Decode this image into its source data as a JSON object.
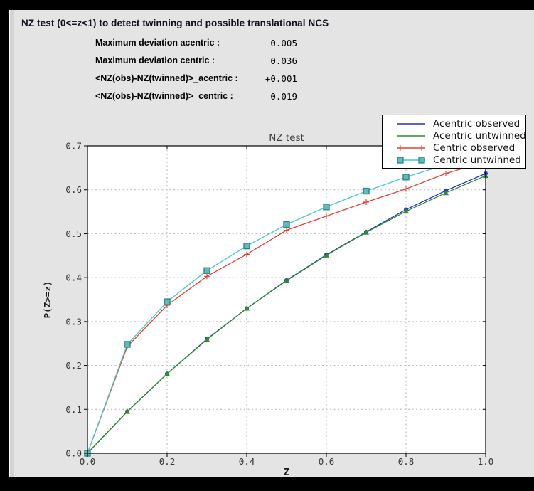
{
  "header": {
    "title": "NZ test (0<=z<1) to detect twinning and possible translational NCS",
    "stats": [
      {
        "label": "Maximum deviation acentric :",
        "value": "0.005"
      },
      {
        "label": "Maximum deviation centric :",
        "value": "0.036"
      },
      {
        "label": "<NZ(obs)-NZ(twinned)>_acentric :",
        "value": "+0.001"
      },
      {
        "label": "<NZ(obs)-NZ(twinned)>_centric :",
        "value": "-0.019"
      }
    ]
  },
  "chart_data": {
    "type": "line",
    "title": "NZ test",
    "xlabel": "Z",
    "ylabel": "P(Z>=z)",
    "xlim": [
      0.0,
      1.0
    ],
    "ylim": [
      0.0,
      0.7
    ],
    "xticks": [
      0.0,
      0.2,
      0.4,
      0.6,
      0.8,
      1.0
    ],
    "yticks": [
      0.0,
      0.1,
      0.2,
      0.3,
      0.4,
      0.5,
      0.6,
      0.7
    ],
    "grid": true,
    "grid_color": "#b3b3b3",
    "plot_bg": "#ffffff",
    "frame_color": "#000000",
    "tick_text_color": "#333333",
    "title_color": "#3c3c3c",
    "legend_position": "upper right",
    "x": [
      0.0,
      0.1,
      0.2,
      0.3,
      0.4,
      0.5,
      0.6,
      0.7,
      0.8,
      0.9,
      1.0
    ],
    "series": [
      {
        "name": "Acentric observed",
        "color": "#2333cc",
        "marker": "circle",
        "legend_marker": false,
        "values": [
          0.0,
          0.095,
          0.181,
          0.26,
          0.33,
          0.394,
          0.452,
          0.504,
          0.555,
          0.598,
          0.637
        ]
      },
      {
        "name": "Acentric untwinned",
        "color": "#2e8b2e",
        "marker": "triangle",
        "legend_marker": false,
        "values": [
          0.0,
          0.095,
          0.181,
          0.259,
          0.33,
          0.393,
          0.451,
          0.503,
          0.551,
          0.593,
          0.632
        ]
      },
      {
        "name": "Centric observed",
        "color": "#e8402e",
        "marker": "plus",
        "legend_marker": true,
        "values": [
          0.0,
          0.243,
          0.337,
          0.403,
          0.453,
          0.508,
          0.54,
          0.572,
          0.602,
          0.637,
          0.664
        ]
      },
      {
        "name": "Centric untwinned",
        "color": "#45c8c8",
        "marker": "square",
        "marker_fill": "#63b8b8",
        "marker_edge": "#2a8888",
        "legend_marker": true,
        "values": [
          0.0,
          0.248,
          0.345,
          0.416,
          0.472,
          0.521,
          0.561,
          0.597,
          0.629,
          0.657,
          0.683
        ]
      }
    ]
  }
}
